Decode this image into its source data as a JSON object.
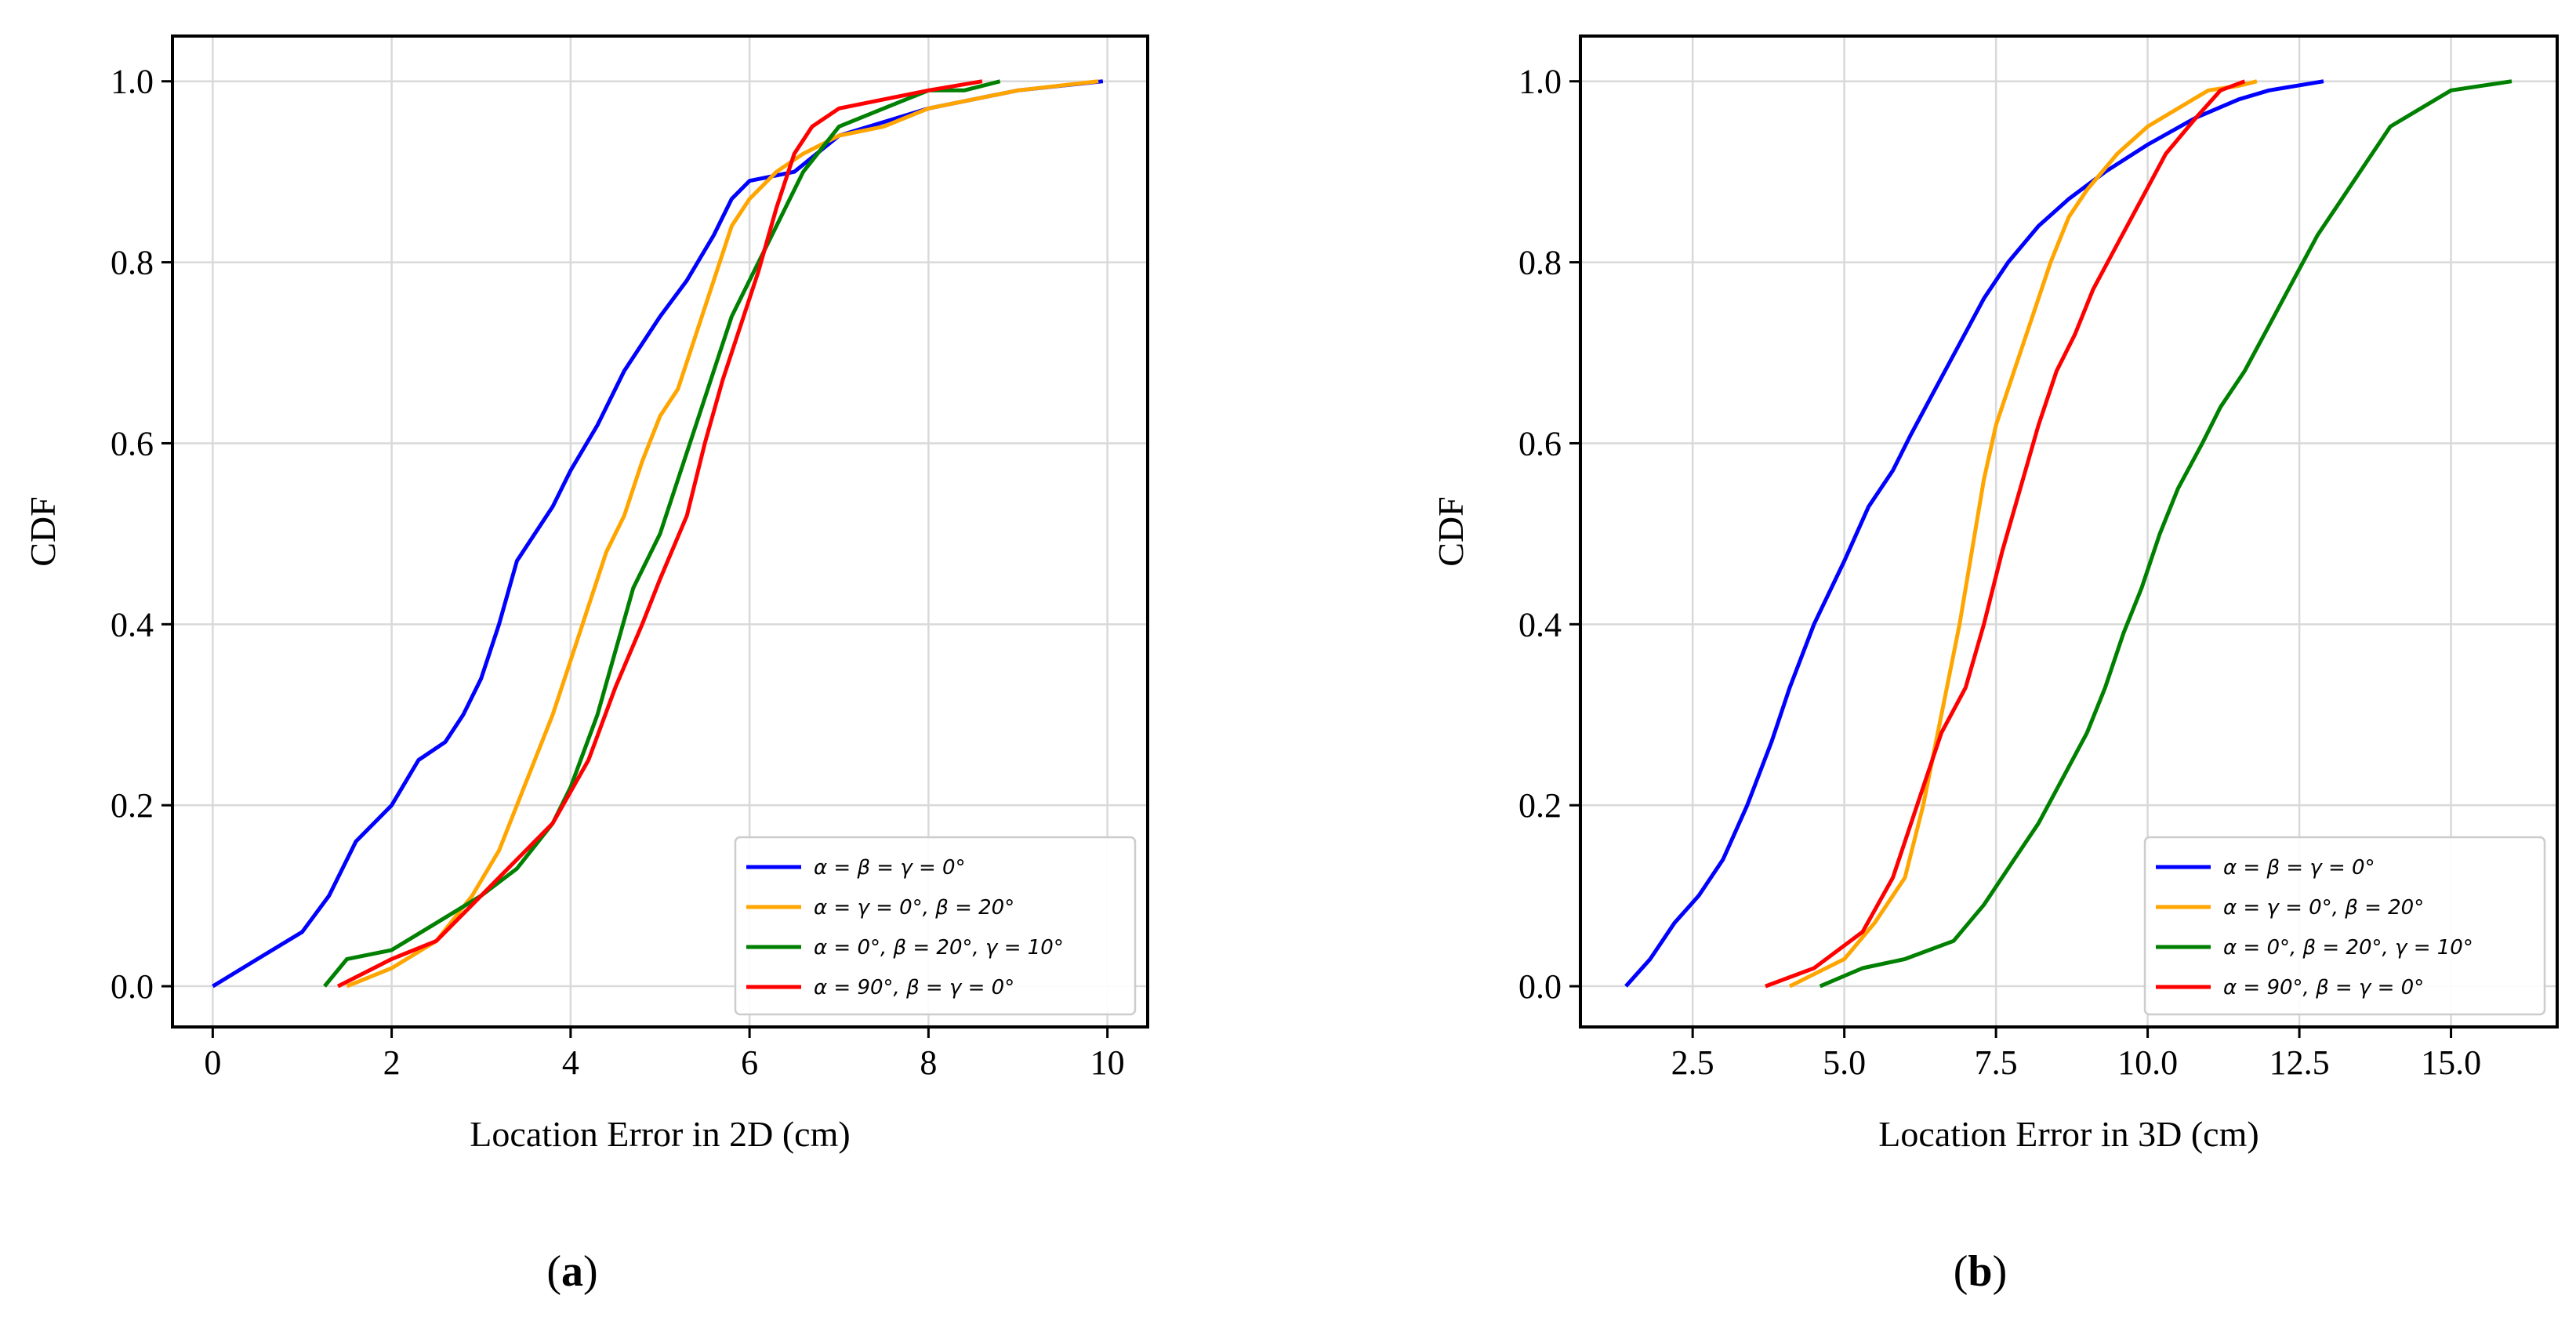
{
  "chart_data": [
    {
      "type": "line",
      "panel": "a",
      "caption_open": "(",
      "caption_letter": "a",
      "caption_close": ")",
      "xlabel": "Location Error in 2D (cm)",
      "ylabel": "CDF",
      "xlim": [
        -0.45,
        10.45
      ],
      "ylim": [
        -0.045,
        1.05
      ],
      "xticks": [
        0,
        2,
        4,
        6,
        8,
        10
      ],
      "xtick_labels": [
        "0",
        "2",
        "4",
        "6",
        "8",
        "10"
      ],
      "yticks": [
        0.0,
        0.2,
        0.4,
        0.6,
        0.8,
        1.0
      ],
      "ytick_labels": [
        "0.0",
        "0.2",
        "0.4",
        "0.6",
        "0.8",
        "1.0"
      ],
      "grid": true,
      "legend_position": "bottom-right",
      "series": [
        {
          "name": "α = β = γ = 0°",
          "color": "#0000ff",
          "x": [
            0.0,
            0.5,
            1.0,
            1.3,
            1.6,
            2.0,
            2.3,
            2.6,
            2.8,
            3.0,
            3.2,
            3.4,
            3.6,
            3.8,
            4.0,
            4.3,
            4.6,
            5.0,
            5.3,
            5.6,
            5.8,
            6.0,
            6.5,
            7.0,
            8.0,
            9.0,
            9.95
          ],
          "y": [
            0.0,
            0.03,
            0.06,
            0.1,
            0.16,
            0.2,
            0.25,
            0.27,
            0.3,
            0.34,
            0.4,
            0.47,
            0.5,
            0.53,
            0.57,
            0.62,
            0.68,
            0.74,
            0.78,
            0.83,
            0.87,
            0.89,
            0.9,
            0.94,
            0.97,
            0.99,
            1.0
          ]
        },
        {
          "name": "α = γ = 0°, β = 20°",
          "color": "#ffa500",
          "x": [
            1.5,
            2.0,
            2.5,
            2.9,
            3.2,
            3.4,
            3.6,
            3.8,
            4.0,
            4.2,
            4.4,
            4.6,
            4.8,
            5.0,
            5.2,
            5.4,
            5.6,
            5.8,
            6.0,
            6.3,
            6.6,
            7.0,
            7.5,
            8.0,
            9.0,
            9.9
          ],
          "y": [
            0.0,
            0.02,
            0.05,
            0.1,
            0.15,
            0.2,
            0.25,
            0.3,
            0.36,
            0.42,
            0.48,
            0.52,
            0.58,
            0.63,
            0.66,
            0.72,
            0.78,
            0.84,
            0.87,
            0.9,
            0.92,
            0.94,
            0.95,
            0.97,
            0.99,
            1.0
          ]
        },
        {
          "name": "α = 0°, β = 20°, γ = 10°",
          "color": "#008000",
          "x": [
            1.25,
            1.5,
            2.0,
            2.5,
            3.0,
            3.4,
            3.8,
            4.0,
            4.3,
            4.5,
            4.7,
            5.0,
            5.2,
            5.4,
            5.6,
            5.8,
            6.0,
            6.2,
            6.4,
            6.6,
            7.0,
            7.5,
            8.0,
            8.4,
            8.8
          ],
          "y": [
            0.0,
            0.03,
            0.04,
            0.07,
            0.1,
            0.13,
            0.18,
            0.22,
            0.3,
            0.37,
            0.44,
            0.5,
            0.56,
            0.62,
            0.68,
            0.74,
            0.78,
            0.82,
            0.86,
            0.9,
            0.95,
            0.97,
            0.99,
            0.99,
            1.0
          ]
        },
        {
          "name": "α = 90°, β = γ = 0°",
          "color": "#ff0000",
          "x": [
            1.4,
            2.0,
            2.5,
            3.0,
            3.4,
            3.8,
            4.2,
            4.5,
            4.8,
            5.0,
            5.3,
            5.5,
            5.7,
            5.9,
            6.1,
            6.3,
            6.5,
            6.7,
            7.0,
            7.5,
            8.0,
            8.6
          ],
          "y": [
            0.0,
            0.03,
            0.05,
            0.1,
            0.14,
            0.18,
            0.25,
            0.33,
            0.4,
            0.45,
            0.52,
            0.6,
            0.67,
            0.73,
            0.79,
            0.86,
            0.92,
            0.95,
            0.97,
            0.98,
            0.99,
            1.0
          ]
        }
      ]
    },
    {
      "type": "line",
      "panel": "b",
      "caption_open": "(",
      "caption_letter": "b",
      "caption_close": ")",
      "xlabel": "Location Error in 3D (cm)",
      "ylabel": "CDF",
      "xlim": [
        0.65,
        16.75
      ],
      "ylim": [
        -0.045,
        1.05
      ],
      "xticks": [
        2.5,
        5.0,
        7.5,
        10.0,
        12.5,
        15.0
      ],
      "xtick_labels": [
        "2.5",
        "5.0",
        "7.5",
        "10.0",
        "12.5",
        "15.0"
      ],
      "yticks": [
        0.0,
        0.2,
        0.4,
        0.6,
        0.8,
        1.0
      ],
      "ytick_labels": [
        "0.0",
        "0.2",
        "0.4",
        "0.6",
        "0.8",
        "1.0"
      ],
      "grid": true,
      "legend_position": "bottom-right",
      "series": [
        {
          "name": "α = β = γ = 0°",
          "color": "#0000ff",
          "x": [
            1.4,
            1.8,
            2.2,
            2.6,
            3.0,
            3.4,
            3.8,
            4.1,
            4.5,
            5.0,
            5.4,
            5.8,
            6.1,
            6.5,
            6.9,
            7.3,
            7.7,
            8.2,
            8.7,
            9.3,
            10.0,
            10.8,
            11.5,
            12.0,
            12.9
          ],
          "y": [
            0.0,
            0.03,
            0.07,
            0.1,
            0.14,
            0.2,
            0.27,
            0.33,
            0.4,
            0.47,
            0.53,
            0.57,
            0.61,
            0.66,
            0.71,
            0.76,
            0.8,
            0.84,
            0.87,
            0.9,
            0.93,
            0.96,
            0.98,
            0.99,
            1.0
          ]
        },
        {
          "name": "α = γ = 0°, β = 20°",
          "color": "#ffa500",
          "x": [
            4.1,
            5.0,
            5.5,
            6.0,
            6.3,
            6.6,
            6.9,
            7.1,
            7.3,
            7.5,
            7.8,
            8.1,
            8.4,
            8.7,
            9.0,
            9.5,
            10.0,
            10.5,
            11.0,
            11.5,
            11.8
          ],
          "y": [
            0.0,
            0.03,
            0.07,
            0.12,
            0.2,
            0.3,
            0.4,
            0.48,
            0.56,
            0.62,
            0.68,
            0.74,
            0.8,
            0.85,
            0.88,
            0.92,
            0.95,
            0.97,
            0.99,
            0.995,
            1.0
          ]
        },
        {
          "name": "α = 0°, β = 20°, γ = 10°",
          "color": "#008000",
          "x": [
            4.6,
            5.3,
            6.0,
            6.8,
            7.3,
            7.8,
            8.2,
            8.6,
            9.0,
            9.3,
            9.6,
            9.9,
            10.2,
            10.5,
            10.9,
            11.2,
            11.6,
            12.0,
            12.4,
            12.8,
            13.2,
            13.6,
            14.0,
            14.5,
            15.0,
            16.0
          ],
          "y": [
            0.0,
            0.02,
            0.03,
            0.05,
            0.09,
            0.14,
            0.18,
            0.23,
            0.28,
            0.33,
            0.39,
            0.44,
            0.5,
            0.55,
            0.6,
            0.64,
            0.68,
            0.73,
            0.78,
            0.83,
            0.87,
            0.91,
            0.95,
            0.97,
            0.99,
            1.0
          ]
        },
        {
          "name": "α = 90°, β = γ = 0°",
          "color": "#ff0000",
          "x": [
            3.7,
            4.5,
            5.3,
            5.8,
            6.2,
            6.6,
            7.0,
            7.3,
            7.6,
            7.9,
            8.2,
            8.5,
            8.8,
            9.1,
            9.5,
            9.9,
            10.3,
            10.8,
            11.2,
            11.6
          ],
          "y": [
            0.0,
            0.02,
            0.06,
            0.12,
            0.2,
            0.28,
            0.33,
            0.4,
            0.48,
            0.55,
            0.62,
            0.68,
            0.72,
            0.77,
            0.82,
            0.87,
            0.92,
            0.96,
            0.99,
            1.0
          ]
        }
      ]
    }
  ]
}
